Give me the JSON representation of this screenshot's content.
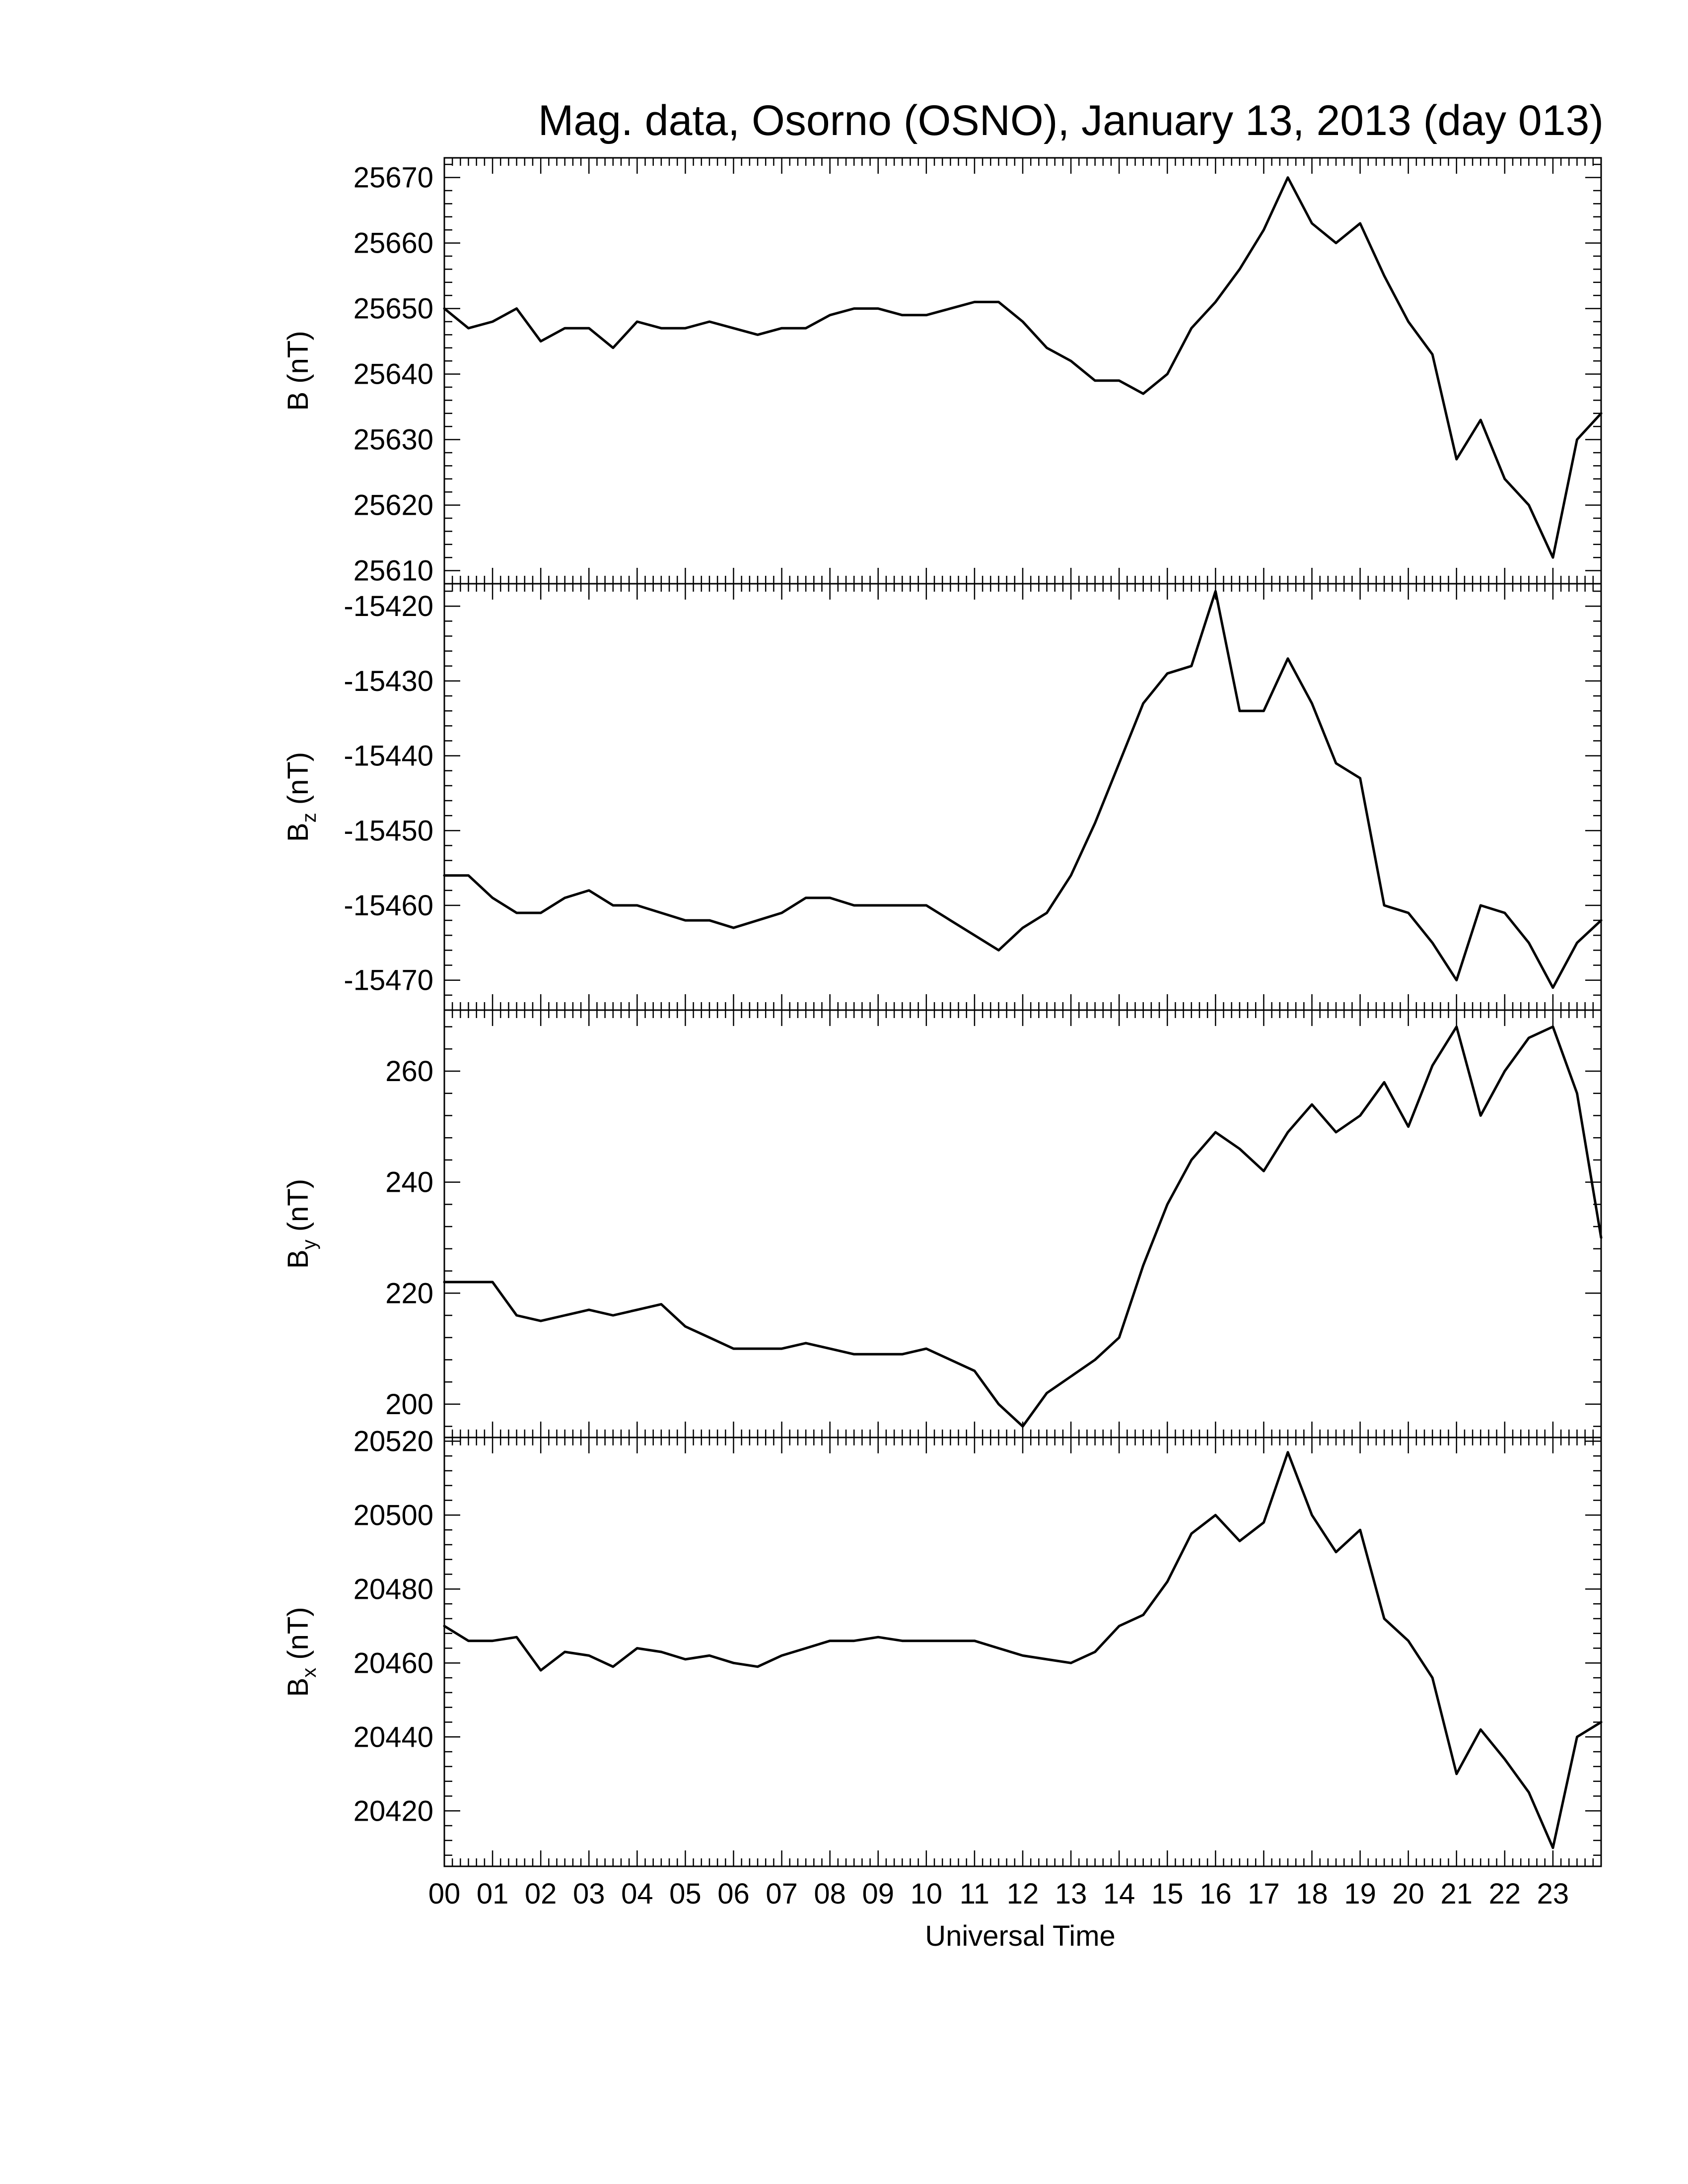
{
  "title": "Mag. data, Osorno (OSNO), January 13, 2013 (day 013)",
  "chart_data": [
    {
      "type": "line",
      "ylabel": "B (nT)",
      "ylim": [
        25608,
        25673
      ],
      "yticks": [
        25610,
        25620,
        25630,
        25640,
        25650,
        25660,
        25670
      ],
      "x": [
        0,
        0.5,
        1,
        1.5,
        2,
        2.5,
        3,
        3.5,
        4,
        4.5,
        5,
        5.5,
        6,
        6.5,
        7,
        7.5,
        8,
        8.5,
        9,
        9.5,
        10,
        10.5,
        11,
        11.5,
        12,
        12.5,
        13,
        13.5,
        14,
        14.5,
        15,
        15.5,
        16,
        16.5,
        17,
        17.5,
        18,
        18.5,
        19,
        19.5,
        20,
        20.5,
        21,
        21.5,
        22,
        22.5,
        23,
        23.5,
        24
      ],
      "y": [
        25650,
        25647,
        25648,
        25650,
        25645,
        25647,
        25647,
        25644,
        25648,
        25647,
        25647,
        25648,
        25647,
        25646,
        25647,
        25647,
        25649,
        25650,
        25650,
        25649,
        25649,
        25650,
        25651,
        25651,
        25648,
        25644,
        25642,
        25639,
        25639,
        25637,
        25640,
        25647,
        25651,
        25656,
        25662,
        25670,
        25663,
        25660,
        25663,
        25655,
        25648,
        25643,
        25627,
        25633,
        25624,
        25620,
        25612,
        25630,
        25634
      ]
    },
    {
      "type": "line",
      "ylabel": "B",
      "ylabel_sub": "z",
      "ylabel_unit": "(nT)",
      "ylim": [
        -15474,
        -15417
      ],
      "yticks": [
        -15420,
        -15430,
        -15440,
        -15450,
        -15460,
        -15470
      ],
      "x": [
        0,
        0.5,
        1,
        1.5,
        2,
        2.5,
        3,
        3.5,
        4,
        4.5,
        5,
        5.5,
        6,
        6.5,
        7,
        7.5,
        8,
        8.5,
        9,
        9.5,
        10,
        10.5,
        11,
        11.5,
        12,
        12.5,
        13,
        13.5,
        14,
        14.5,
        15,
        15.5,
        16,
        16.5,
        17,
        17.5,
        18,
        18.5,
        19,
        19.5,
        20,
        20.5,
        21,
        21.5,
        22,
        22.5,
        23,
        23.5,
        24
      ],
      "y": [
        -15456,
        -15456,
        -15459,
        -15461,
        -15461,
        -15459,
        -15458,
        -15460,
        -15460,
        -15461,
        -15462,
        -15462,
        -15463,
        -15462,
        -15461,
        -15459,
        -15459,
        -15460,
        -15460,
        -15460,
        -15460,
        -15462,
        -15464,
        -15466,
        -15463,
        -15461,
        -15456,
        -15449,
        -15441,
        -15433,
        -15429,
        -15428,
        -15418,
        -15434,
        -15434,
        -15427,
        -15433,
        -15441,
        -15443,
        -15460,
        -15461,
        -15465,
        -15470,
        -15460,
        -15461,
        -15465,
        -15471,
        -15465,
        -15462
      ]
    },
    {
      "type": "line",
      "ylabel": "B",
      "ylabel_sub": "y",
      "ylabel_unit": "(nT)",
      "ylim": [
        194,
        271
      ],
      "yticks": [
        200,
        220,
        240,
        260
      ],
      "x": [
        0,
        0.5,
        1,
        1.5,
        2,
        2.5,
        3,
        3.5,
        4,
        4.5,
        5,
        5.5,
        6,
        6.5,
        7,
        7.5,
        8,
        8.5,
        9,
        9.5,
        10,
        10.5,
        11,
        11.5,
        12,
        12.5,
        13,
        13.5,
        14,
        14.5,
        15,
        15.5,
        16,
        16.5,
        17,
        17.5,
        18,
        18.5,
        19,
        19.5,
        20,
        20.5,
        21,
        21.5,
        22,
        22.5,
        23,
        23.5,
        24
      ],
      "y": [
        222,
        222,
        222,
        216,
        215,
        216,
        217,
        216,
        217,
        218,
        214,
        212,
        210,
        210,
        210,
        211,
        210,
        209,
        209,
        209,
        210,
        208,
        206,
        200,
        196,
        202,
        205,
        208,
        212,
        225,
        236,
        244,
        249,
        246,
        242,
        249,
        254,
        249,
        252,
        258,
        250,
        261,
        268,
        252,
        260,
        266,
        268,
        256,
        230
      ]
    },
    {
      "type": "line",
      "ylabel": "B",
      "ylabel_sub": "x",
      "ylabel_unit": "(nT)",
      "ylim": [
        20405,
        20521
      ],
      "yticks": [
        20420,
        20440,
        20460,
        20480,
        20500,
        20520
      ],
      "x": [
        0,
        0.5,
        1,
        1.5,
        2,
        2.5,
        3,
        3.5,
        4,
        4.5,
        5,
        5.5,
        6,
        6.5,
        7,
        7.5,
        8,
        8.5,
        9,
        9.5,
        10,
        10.5,
        11,
        11.5,
        12,
        12.5,
        13,
        13.5,
        14,
        14.5,
        15,
        15.5,
        16,
        16.5,
        17,
        17.5,
        18,
        18.5,
        19,
        19.5,
        20,
        20.5,
        21,
        21.5,
        22,
        22.5,
        23,
        23.5,
        24
      ],
      "y": [
        20470,
        20466,
        20466,
        20467,
        20458,
        20463,
        20462,
        20459,
        20464,
        20463,
        20461,
        20462,
        20460,
        20459,
        20462,
        20464,
        20466,
        20466,
        20467,
        20466,
        20466,
        20466,
        20466,
        20464,
        20462,
        20461,
        20460,
        20463,
        20470,
        20473,
        20482,
        20495,
        20500,
        20493,
        20498,
        20517,
        20500,
        20490,
        20496,
        20472,
        20466,
        20456,
        20430,
        20442,
        20434,
        20425,
        20410,
        20440,
        20444
      ]
    }
  ],
  "x_axis": {
    "xlabel": "Universal Time",
    "xlim": [
      0,
      24
    ],
    "tick_labels": [
      "00",
      "01",
      "02",
      "03",
      "04",
      "05",
      "06",
      "07",
      "08",
      "09",
      "10",
      "11",
      "12",
      "13",
      "14",
      "15",
      "16",
      "17",
      "18",
      "19",
      "20",
      "21",
      "22",
      "23"
    ]
  }
}
